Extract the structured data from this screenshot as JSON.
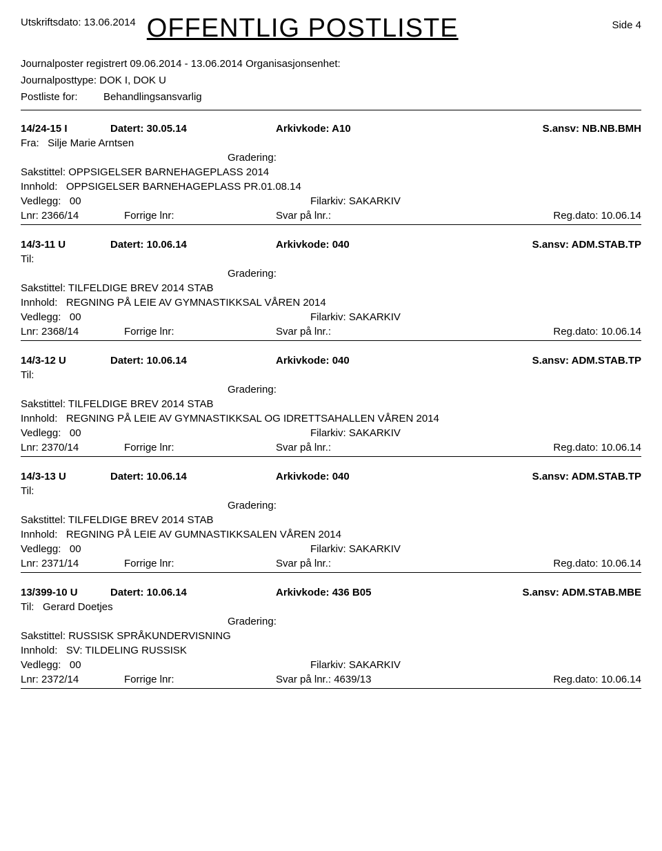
{
  "header": {
    "print_date_label": "Utskriftsdato:",
    "print_date": "13.06.2014",
    "title": "OFFENTLIG POSTLISTE",
    "page_label": "Side",
    "page_num": "4"
  },
  "meta": {
    "line1_label": "Journalposter registrert",
    "line1_range": "09.06.2014 - 13.06.2014",
    "line1_org": "Organisasjonsenhet:",
    "line2_label": "Journalposttype:",
    "line2_value": "DOK I, DOK U",
    "line3_label": "Postliste for:",
    "line3_value": "Behandlingsansvarlig"
  },
  "labels": {
    "datert": "Datert:",
    "arkiv": "Arkivkode:",
    "sansv": "S.ansv:",
    "fra": "Fra:",
    "til": "Til:",
    "gradering": "Gradering:",
    "saks": "Sakstittel:",
    "innhold": "Innhold:",
    "vedlegg": "Vedlegg:",
    "filarkiv": "Filarkiv:",
    "lnr": "Lnr:",
    "forrige": "Forrige lnr:",
    "svar": "Svar på lnr.:",
    "regdato": "Reg.dato:"
  },
  "entries": [
    {
      "id": "14/24-15 I",
      "datert": "30.05.14",
      "arkiv": "A10",
      "sansv": "NB.NB.BMH",
      "from_label": "Fra:",
      "from": "Silje Marie Arntsen",
      "saks": "OPPSIGELSER BARNEHAGEPLASS 2014",
      "innhold": "OPPSIGELSER BARNEHAGEPLASS PR.01.08.14",
      "vedlegg": "00",
      "filarkiv": "SAKARKIV",
      "lnr": "2366/14",
      "svar": "",
      "regdato": "10.06.14"
    },
    {
      "id": "14/3-11 U",
      "datert": "10.06.14",
      "arkiv": "040",
      "sansv": "ADM.STAB.TP",
      "from_label": "Til:",
      "from": "",
      "saks": "TILFELDIGE BREV 2014 STAB",
      "innhold": "REGNING PÅ LEIE AV GYMNASTIKKSAL VÅREN 2014",
      "vedlegg": "00",
      "filarkiv": "SAKARKIV",
      "lnr": "2368/14",
      "svar": "",
      "regdato": "10.06.14"
    },
    {
      "id": "14/3-12 U",
      "datert": "10.06.14",
      "arkiv": "040",
      "sansv": "ADM.STAB.TP",
      "from_label": "Til:",
      "from": "",
      "saks": "TILFELDIGE BREV 2014 STAB",
      "innhold": "REGNING PÅ LEIE AV GYMNASTIKKSAL OG IDRETTSAHALLEN VÅREN 2014",
      "vedlegg": "00",
      "filarkiv": "SAKARKIV",
      "lnr": "2370/14",
      "svar": "",
      "regdato": "10.06.14"
    },
    {
      "id": "14/3-13 U",
      "datert": "10.06.14",
      "arkiv": "040",
      "sansv": "ADM.STAB.TP",
      "from_label": "Til:",
      "from": "",
      "saks": "TILFELDIGE BREV 2014 STAB",
      "innhold": "REGNING PÅ LEIE AV GUMNASTIKKSALEN VÅREN 2014",
      "vedlegg": "00",
      "filarkiv": "SAKARKIV",
      "lnr": "2371/14",
      "svar": "",
      "regdato": "10.06.14"
    },
    {
      "id": "13/399-10 U",
      "datert": "10.06.14",
      "arkiv": "436 B05",
      "sansv": "ADM.STAB.MBE",
      "from_label": "Til:",
      "from": "Gerard Doetjes",
      "saks": "RUSSISK SPRÅKUNDERVISNING",
      "innhold": "SV: TILDELING RUSSISK",
      "vedlegg": "00",
      "filarkiv": "SAKARKIV",
      "lnr": "2372/14",
      "svar": "4639/13",
      "regdato": "10.06.14"
    }
  ]
}
